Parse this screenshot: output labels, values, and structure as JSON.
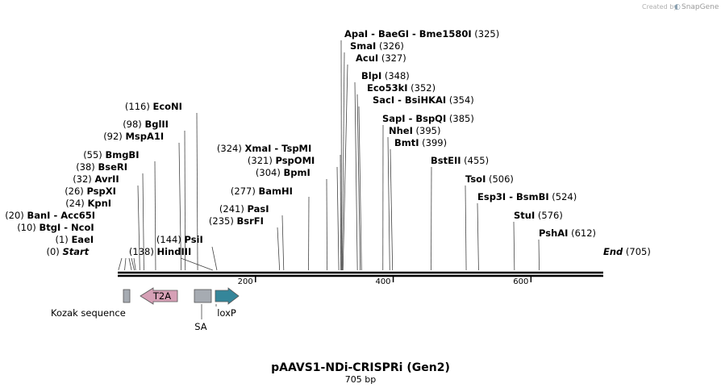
{
  "credit": {
    "prefix": "Created by",
    "brand": "SnapGene"
  },
  "map": {
    "title": "pAAVS1-NDi-CRISPRi (Gen2)",
    "length_label": "705 bp",
    "length": 705,
    "ticks": [
      {
        "label": "200"
      },
      {
        "label": "400"
      },
      {
        "label": "600"
      }
    ],
    "sites": [
      {
        "id": "start",
        "pos": "(0)",
        "name": "Start",
        "italic": true
      },
      {
        "id": "eaei",
        "pos": "(1)",
        "name": "EaeI"
      },
      {
        "id": "btgi",
        "pos": "(10)",
        "name": "BtgI",
        "alt": "NcoI"
      },
      {
        "id": "bani",
        "pos": "(20)",
        "name": "BanI",
        "alt": "Acc65I"
      },
      {
        "id": "kpni",
        "pos": "(24)",
        "name": "KpnI"
      },
      {
        "id": "pspxi",
        "pos": "(26)",
        "name": "PspXI"
      },
      {
        "id": "avrii",
        "pos": "(32)",
        "name": "AvrII"
      },
      {
        "id": "beseri",
        "pos": "(38)",
        "name": "BseRI"
      },
      {
        "id": "bmgbi",
        "pos": "(55)",
        "name": "BmgBI"
      },
      {
        "id": "mspa1i",
        "pos": "(92)",
        "name": "MspA1I"
      },
      {
        "id": "bglii",
        "pos": "(98)",
        "name": "BglII"
      },
      {
        "id": "econi",
        "pos": "(116)",
        "name": "EcoNI"
      },
      {
        "id": "hindiii",
        "pos": "(138)",
        "name": "HindIII"
      },
      {
        "id": "psii",
        "pos": "(144)",
        "name": "PsiI"
      },
      {
        "id": "bsrfi",
        "pos": "(235)",
        "name": "BsrFI"
      },
      {
        "id": "pasi",
        "pos": "(241)",
        "name": "PasI"
      },
      {
        "id": "bamhi",
        "pos": "(277)",
        "name": "BamHI"
      },
      {
        "id": "bpmi",
        "pos": "(304)",
        "name": "BpmI"
      },
      {
        "id": "pspomi",
        "pos": "(321)",
        "name": "PspOMI"
      },
      {
        "id": "xmai",
        "pos": "(324)",
        "name": "XmaI",
        "alt": "TspMI"
      },
      {
        "id": "apai",
        "pos": "(325)",
        "name": "ApaI",
        "alt": "BaeGI",
        "alt2": "Bme1580I"
      },
      {
        "id": "smai",
        "pos": "(326)",
        "name": "SmaI"
      },
      {
        "id": "acui",
        "pos": "(327)",
        "name": "AcuI"
      },
      {
        "id": "blpi",
        "pos": "(348)",
        "name": "BlpI"
      },
      {
        "id": "eco53ki",
        "pos": "(352)",
        "name": "Eco53kI"
      },
      {
        "id": "saci",
        "pos": "(354)",
        "name": "SacI",
        "alt": "BsiHKAI"
      },
      {
        "id": "sapi",
        "pos": "(385)",
        "name": "SapI",
        "alt": "BspQI"
      },
      {
        "id": "nhei",
        "pos": "(395)",
        "name": "NheI"
      },
      {
        "id": "bmti",
        "pos": "(399)",
        "name": "BmtI"
      },
      {
        "id": "bsteii",
        "pos": "(455)",
        "name": "BstEII"
      },
      {
        "id": "tsoi",
        "pos": "(506)",
        "name": "TsoI"
      },
      {
        "id": "esp3i",
        "pos": "(524)",
        "name": "Esp3I",
        "alt": "BsmBI"
      },
      {
        "id": "stui",
        "pos": "(576)",
        "name": "StuI"
      },
      {
        "id": "pshai",
        "pos": "(612)",
        "name": "PshAI"
      },
      {
        "id": "end",
        "pos": "(705)",
        "name": "End",
        "italic": true
      }
    ],
    "features": [
      {
        "id": "kozak",
        "label": "Kozak sequence",
        "color": "#a6abb2",
        "type": "box"
      },
      {
        "id": "t2a",
        "label": "T2A",
        "color": "#d6a0b6",
        "type": "arrow-left"
      },
      {
        "id": "sa",
        "label": "SA",
        "color": "#a6abb2",
        "type": "box"
      },
      {
        "id": "loxp",
        "label": "loxP",
        "color": "#35869a",
        "type": "arrow-right"
      }
    ]
  }
}
